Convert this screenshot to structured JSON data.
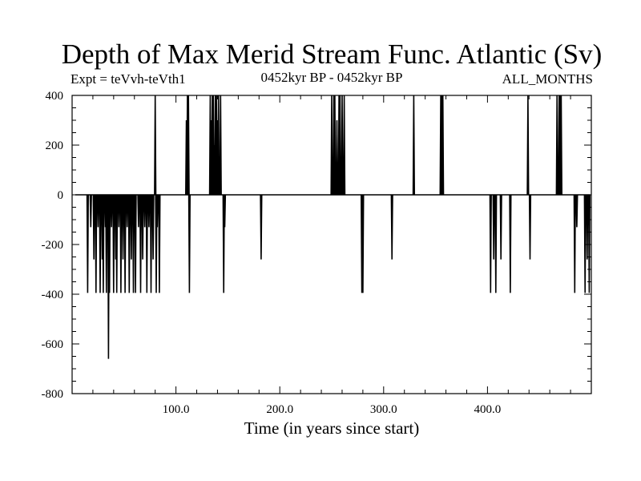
{
  "chart_data": {
    "type": "line",
    "title": "Depth of Max Merid Stream Func. Atlantic (Sv)",
    "subtitle_left": "Expt = teVvh-teVth1",
    "subtitle_center": "0452kyr BP - 0452kyr BP",
    "subtitle_right": "ALL_MONTHS",
    "xlabel": "Time (in years since start)",
    "ylabel": "",
    "xlim": [
      0,
      500
    ],
    "ylim": [
      -800,
      400
    ],
    "x_ticks": [
      100,
      200,
      300,
      400
    ],
    "x_tick_labels": [
      "100.0",
      "200.0",
      "300.0",
      "400.0"
    ],
    "y_ticks": [
      400,
      200,
      0,
      -200,
      -400,
      -600,
      -800
    ],
    "y_tick_labels": [
      "400",
      "200",
      "0",
      "-200",
      "-400",
      "-600",
      "-800"
    ],
    "grid": false,
    "series": [
      {
        "color": "#000000",
        "spikes": [
          [
            15,
            -395
          ],
          [
            18,
            -130
          ],
          [
            21,
            -260
          ],
          [
            23,
            -395
          ],
          [
            25,
            -130
          ],
          [
            27,
            -395
          ],
          [
            29,
            -260
          ],
          [
            30,
            -395
          ],
          [
            32,
            -130
          ],
          [
            33,
            -395
          ],
          [
            35,
            -660
          ],
          [
            36,
            -395
          ],
          [
            38,
            -130
          ],
          [
            40,
            -395
          ],
          [
            42,
            -260
          ],
          [
            43,
            -395
          ],
          [
            45,
            -130
          ],
          [
            47,
            -395
          ],
          [
            49,
            -260
          ],
          [
            51,
            -395
          ],
          [
            53,
            -130
          ],
          [
            55,
            -395
          ],
          [
            57,
            -260
          ],
          [
            59,
            -395
          ],
          [
            61,
            -395
          ],
          [
            64,
            -130
          ],
          [
            66,
            -395
          ],
          [
            68,
            -260
          ],
          [
            70,
            -130
          ],
          [
            72,
            -395
          ],
          [
            74,
            -130
          ],
          [
            76,
            -395
          ],
          [
            78,
            -260
          ],
          [
            80,
            400
          ],
          [
            81,
            -395
          ],
          [
            82,
            -130
          ],
          [
            84,
            -395
          ],
          [
            110,
            300
          ],
          [
            111,
            400
          ],
          [
            112,
            400
          ],
          [
            113,
            -395
          ],
          [
            133,
            400
          ],
          [
            134,
            300
          ],
          [
            135,
            400
          ],
          [
            136,
            400
          ],
          [
            137,
            200
          ],
          [
            138,
            400
          ],
          [
            139,
            400
          ],
          [
            140,
            300
          ],
          [
            141,
            400
          ],
          [
            143,
            400
          ],
          [
            146,
            -395
          ],
          [
            147,
            -130
          ],
          [
            182,
            -260
          ],
          [
            250,
            400
          ],
          [
            252,
            400
          ],
          [
            253,
            400
          ],
          [
            255,
            300
          ],
          [
            257,
            400
          ],
          [
            258,
            400
          ],
          [
            260,
            400
          ],
          [
            262,
            400
          ],
          [
            279,
            -395
          ],
          [
            280,
            -395
          ],
          [
            308,
            -260
          ],
          [
            329,
            400
          ],
          [
            355,
            400
          ],
          [
            356,
            400
          ],
          [
            357,
            400
          ],
          [
            403,
            -395
          ],
          [
            406,
            -260
          ],
          [
            408,
            -395
          ],
          [
            413,
            -260
          ],
          [
            422,
            -395
          ],
          [
            439,
            400
          ],
          [
            441,
            -260
          ],
          [
            467,
            400
          ],
          [
            469,
            400
          ],
          [
            470,
            400
          ],
          [
            471,
            400
          ],
          [
            484,
            -395
          ],
          [
            486,
            -130
          ],
          [
            494,
            -395
          ],
          [
            496,
            -260
          ],
          [
            498,
            -395
          ]
        ]
      }
    ]
  }
}
